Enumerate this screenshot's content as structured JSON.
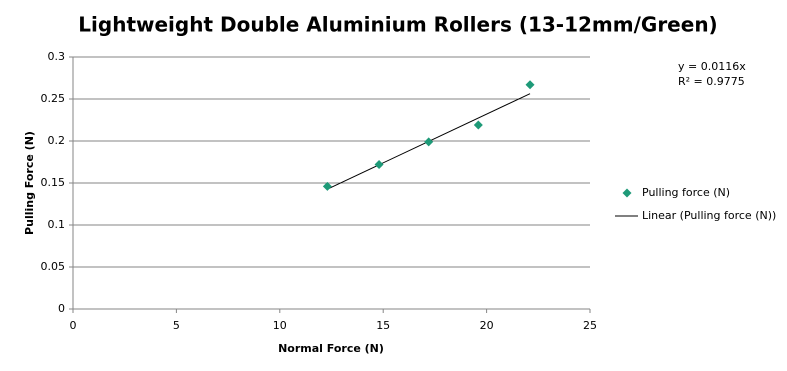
{
  "chart_data": {
    "type": "scatter",
    "title": "Lightweight Double Aluminium Rollers (13-12mm/Green)",
    "x_label": "Normal Force (N)",
    "y_label": "Pulling Force (N)",
    "series": [
      {
        "name": "Pulling force (N)",
        "color": "#1e9a78",
        "x": [
          12.3,
          14.8,
          17.2,
          19.6,
          22.1
        ],
        "values": [
          0.146,
          0.172,
          0.199,
          0.219,
          0.267
        ]
      }
    ],
    "trendline": {
      "name": "Linear (Pulling force (N))",
      "slope": 0.0116,
      "color": "#000000",
      "equation": "y = 0.0116x",
      "r_squared": "R² = 0.9775"
    },
    "xlim": [
      0,
      25
    ],
    "xticks": [
      0,
      5,
      10,
      15,
      20,
      25
    ],
    "ylim": [
      0,
      0.3
    ],
    "yticks": [
      0,
      0.05,
      0.1,
      0.15,
      0.2,
      0.25,
      0.3
    ],
    "grid": true
  }
}
